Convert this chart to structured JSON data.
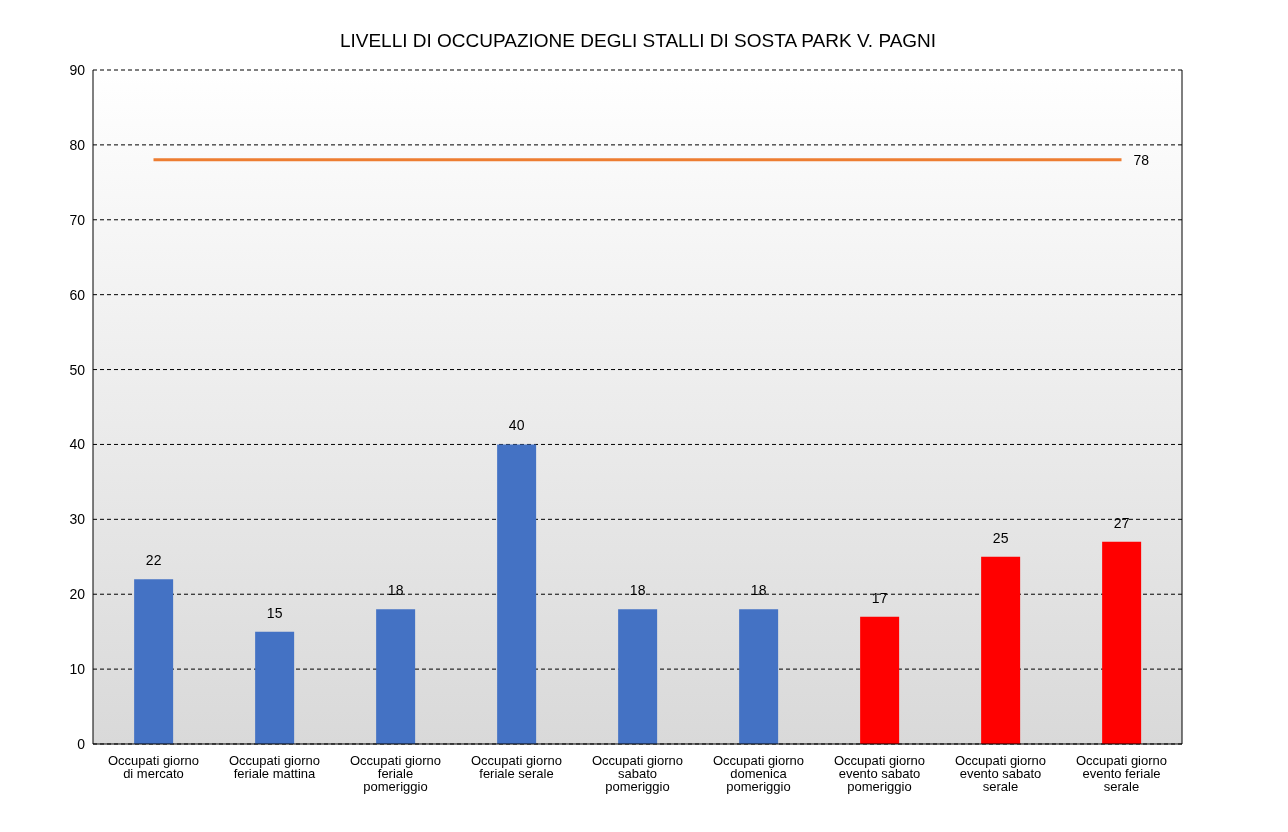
{
  "chart_data": {
    "type": "bar",
    "title": "LIVELLI DI OCCUPAZIONE DEGLI STALLI DI SOSTA PARK V. PAGNI",
    "categories": [
      "Occupati giorno di mercato",
      "Occupati giorno feriale  mattina",
      "Occupati giorno feriale pomeriggio",
      "Occupati giorno feriale serale",
      "Occupati giorno sabato pomeriggio",
      "Occupati giorno domenica pomeriggio",
      "Occupati giorno evento sabato pomeriggio",
      "Occupati giorno evento sabato serale",
      "Occupati giorno evento feriale serale"
    ],
    "values": [
      22,
      15,
      18,
      40,
      18,
      18,
      17,
      25,
      27
    ],
    "colors": [
      "#4472c4",
      "#4472c4",
      "#4472c4",
      "#4472c4",
      "#4472c4",
      "#4472c4",
      "#ff0000",
      "#ff0000",
      "#ff0000"
    ],
    "ylim": [
      0,
      90
    ],
    "yticks": [
      0,
      10,
      20,
      30,
      40,
      50,
      60,
      70,
      80,
      90
    ],
    "grid": "y",
    "data_labels": true,
    "ref_lines": [
      {
        "axis": "y",
        "value": 78,
        "label": "78",
        "color": "#ed7d31"
      }
    ]
  }
}
